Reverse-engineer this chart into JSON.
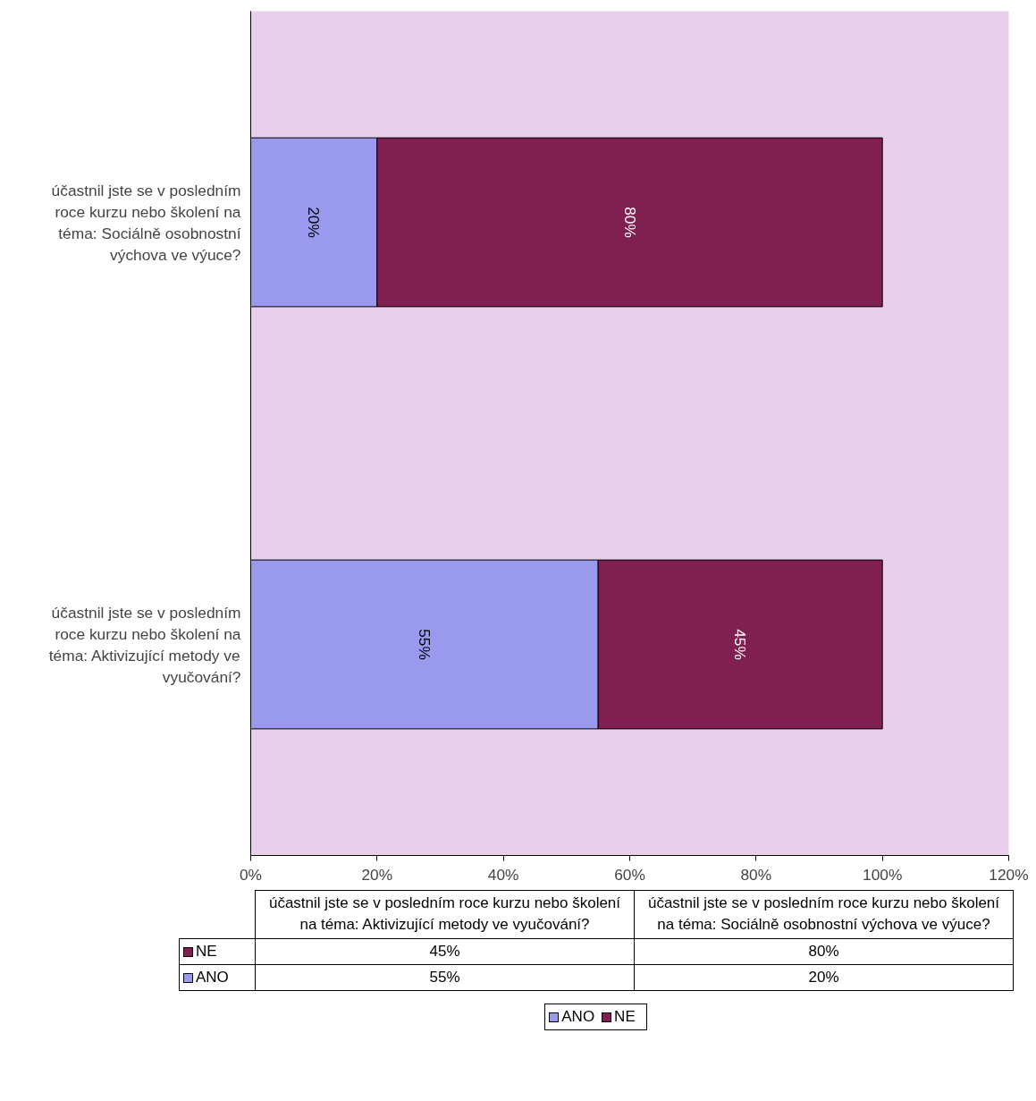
{
  "chart_data": {
    "type": "bar",
    "orientation": "horizontal",
    "stacked": true,
    "categories": [
      "účastnil jste se v posledním roce kurzu nebo školení na téma: Sociálně osobnostní výchova ve výuce?",
      "účastnil jste se v posledním roce kurzu nebo školení na téma: Aktivizující metody ve vyučování?"
    ],
    "series": [
      {
        "name": "ANO",
        "color": "#9999ee",
        "values": [
          20,
          55
        ],
        "value_labels": [
          "20%",
          "55%"
        ]
      },
      {
        "name": "NE",
        "color": "#802050",
        "values": [
          80,
          45
        ],
        "value_labels": [
          "80%",
          "45%"
        ]
      }
    ],
    "xlim": [
      0,
      120
    ],
    "xticks": [
      {
        "value": 0,
        "label": "0%"
      },
      {
        "value": 20,
        "label": "20%"
      },
      {
        "value": 40,
        "label": "40%"
      },
      {
        "value": 60,
        "label": "60%"
      },
      {
        "value": 80,
        "label": "80%"
      },
      {
        "value": 100,
        "label": "100%"
      },
      {
        "value": 120,
        "label": "120%"
      }
    ],
    "grid": false,
    "legend": "bottom"
  }
}
